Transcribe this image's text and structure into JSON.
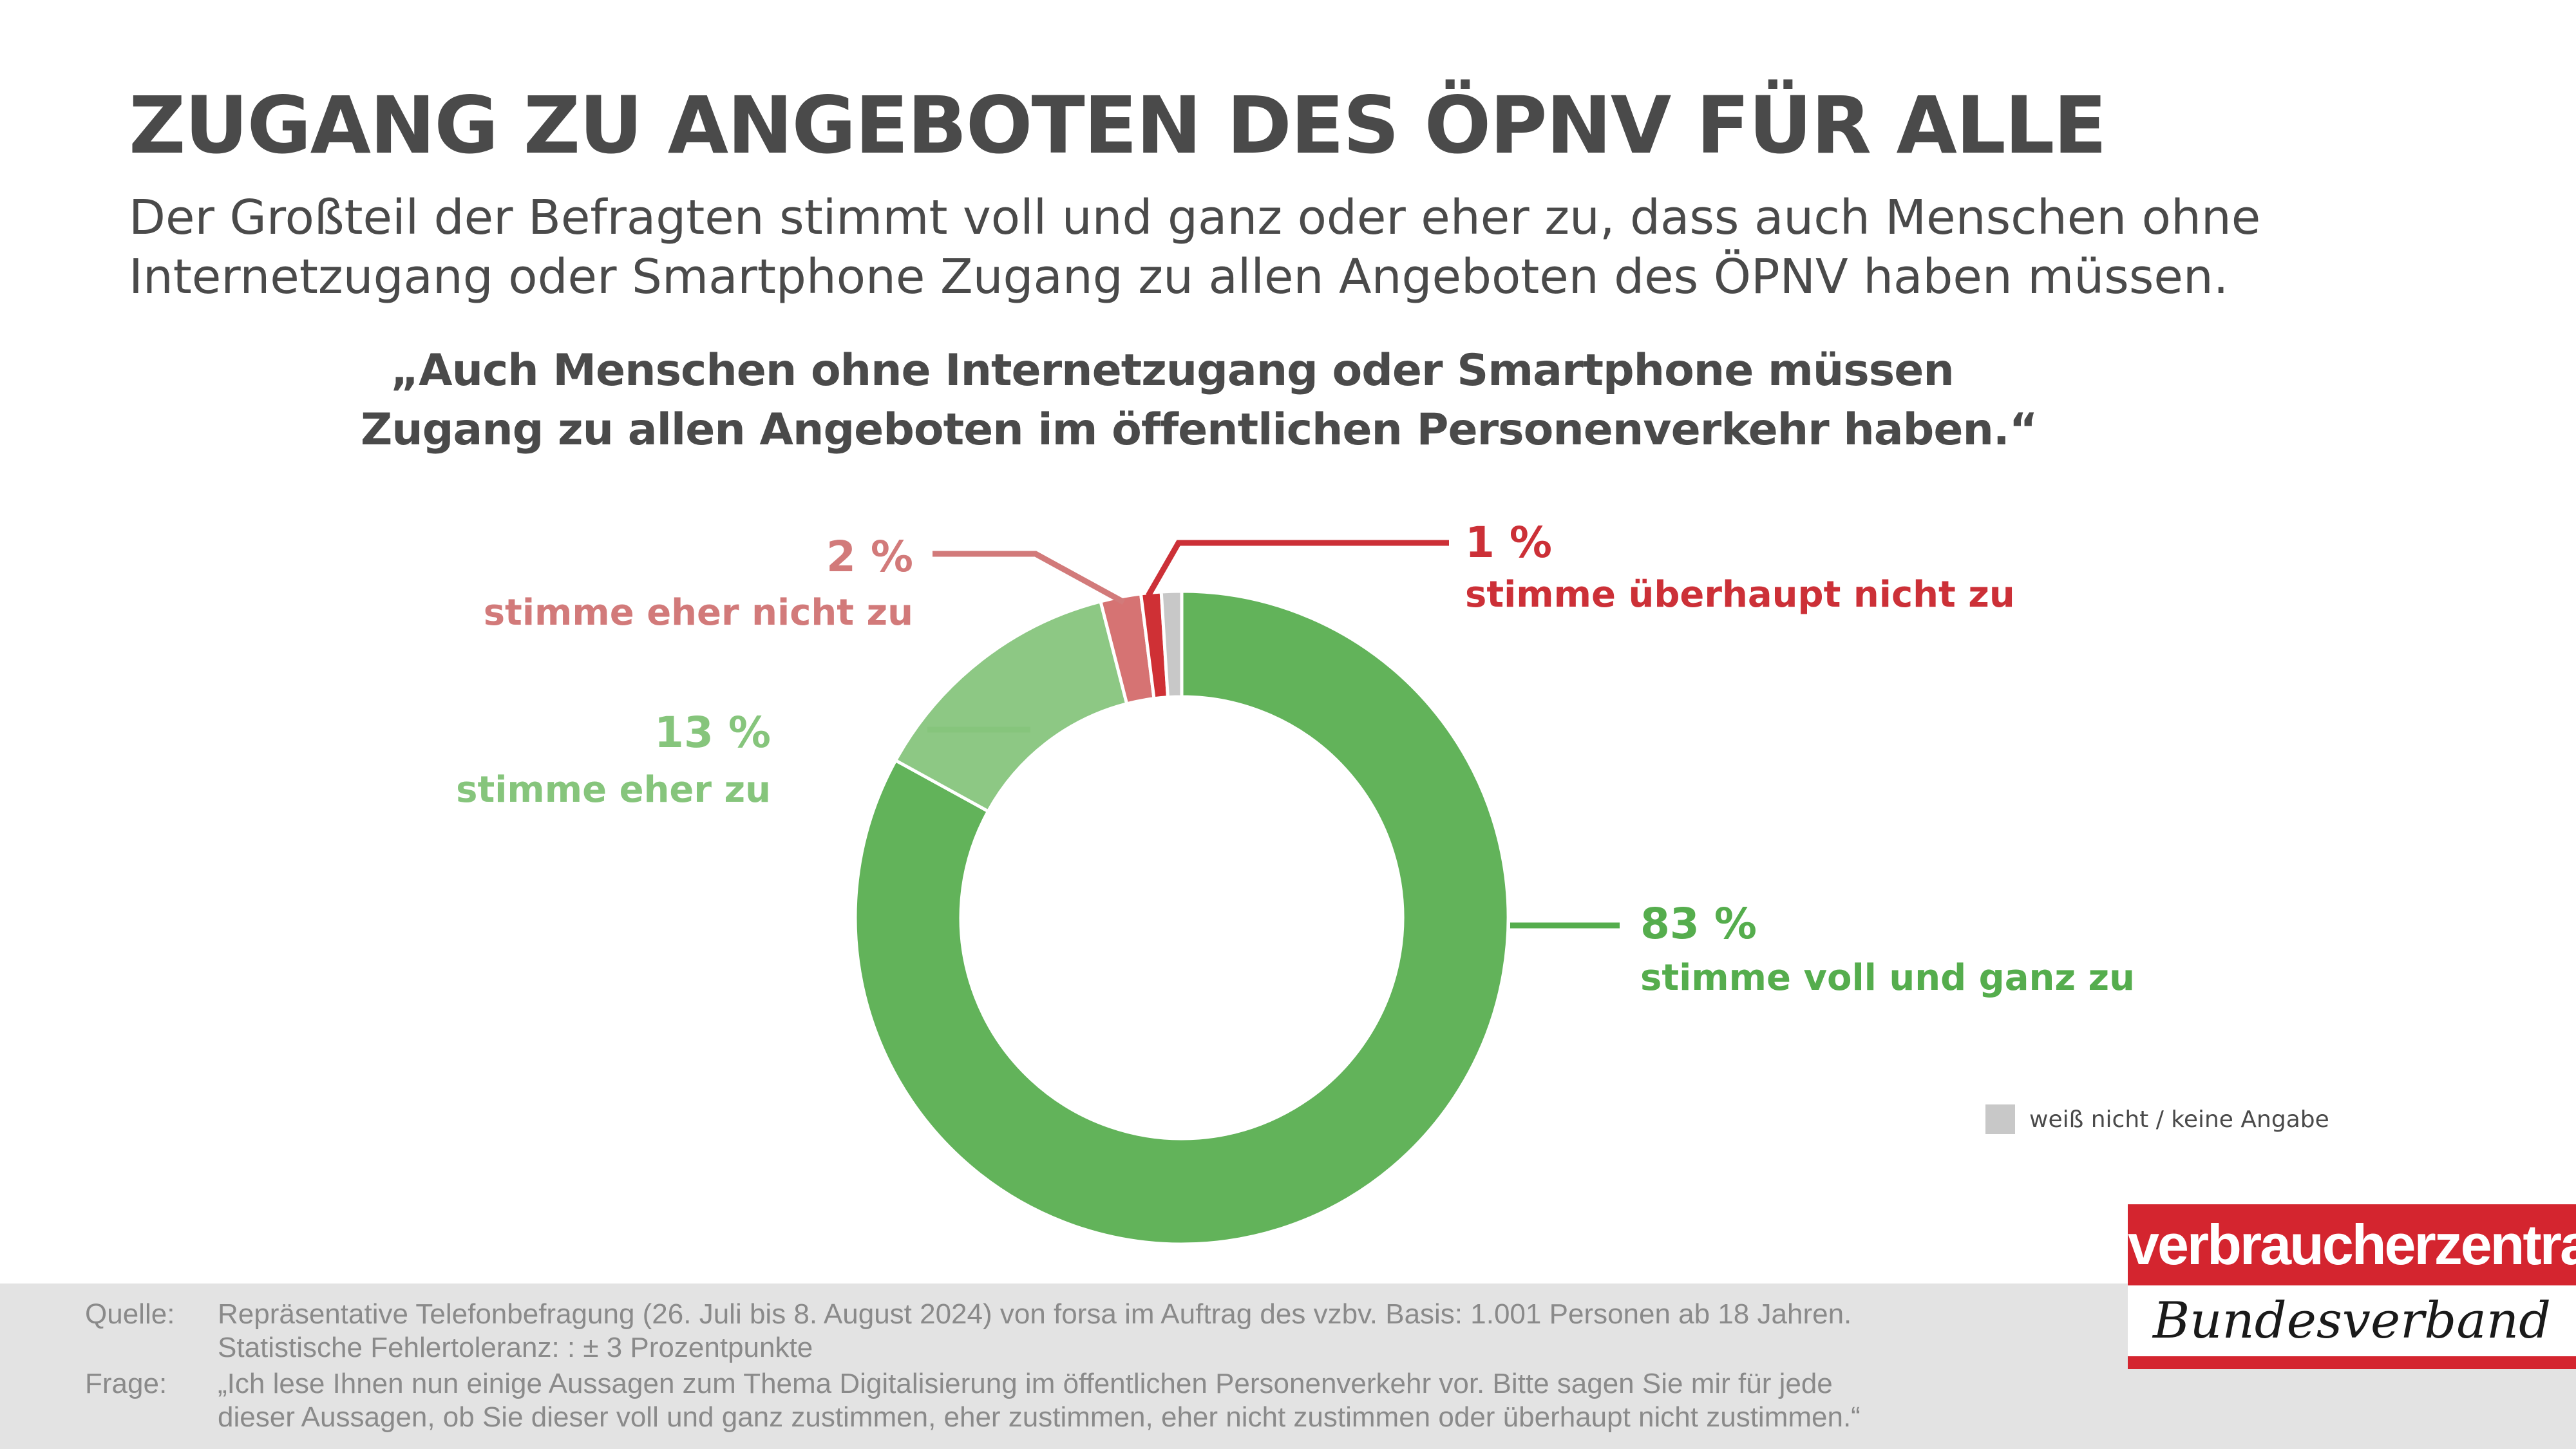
{
  "title": "ZUGANG ZU ANGEBOTEN DES ÖPNV FÜR ALLE",
  "subtitle": {
    "line1": "Der Großteil der Befragten stimmt voll und ganz oder eher zu, dass auch Menschen ohne",
    "line2": "Internetzugang oder Smartphone Zugang zu allen Angeboten des ÖPNV haben müssen."
  },
  "chart_data": {
    "type": "pie",
    "variant": "donut",
    "title_lines": [
      "„Auch Menschen ohne Internetzugang oder Smartphone müssen",
      "Zugang zu allen Angeboten im öffentlichen Personenverkehr haben.“"
    ],
    "slices": [
      {
        "value": 83,
        "pct_label": "83 %",
        "label": "stimme voll und ganz zu",
        "color": "#62b35a",
        "label_color": "#55ad4d"
      },
      {
        "value": 13,
        "pct_label": "13 %",
        "label": "stimme eher zu",
        "color": "#8dc884",
        "label_color": "#86c57c"
      },
      {
        "value": 2,
        "pct_label": "2 %",
        "label": "stimme eher nicht zu",
        "color": "#d67373",
        "label_color": "#d27a7a"
      },
      {
        "value": 1,
        "pct_label": "1 %",
        "label": "stimme überhaupt nicht zu",
        "color": "#cf3035",
        "label_color": "#cc3037"
      },
      {
        "value": 1,
        "pct_label": "",
        "label": "",
        "color": "#c8c8c8",
        "label_color": "#c8c8c8"
      }
    ],
    "legend": {
      "position": "bottom-right",
      "entries": [
        {
          "label": "weiß nicht / keine Angabe",
          "color": "#c8c8c8"
        }
      ]
    }
  },
  "footer": {
    "source_label": "Quelle:",
    "source_line1": "Repräsentative Telefonbefragung (26. Juli bis 8. August 2024) von forsa im Auftrag des vzbv. Basis: 1.001 Personen ab 18 Jahren.",
    "source_line2": "Statistische Fehlertoleranz: : ± 3 Prozentpunkte",
    "question_label": "Frage:",
    "question_line1": "„Ich lese Ihnen nun einige Aussagen zum Thema Digitalisierung im öffentlichen Personenverkehr vor. Bitte sagen Sie mir für jede",
    "question_line2": "dieser Aussagen, ob Sie dieser voll und ganz zustimmen, eher zustimmen, eher nicht zustimmen oder überhaupt nicht zustimmen.“"
  },
  "logo": {
    "top_text": "verbraucherzentrale",
    "bottom_text": "Bundesverband",
    "color": "#d4252f"
  }
}
